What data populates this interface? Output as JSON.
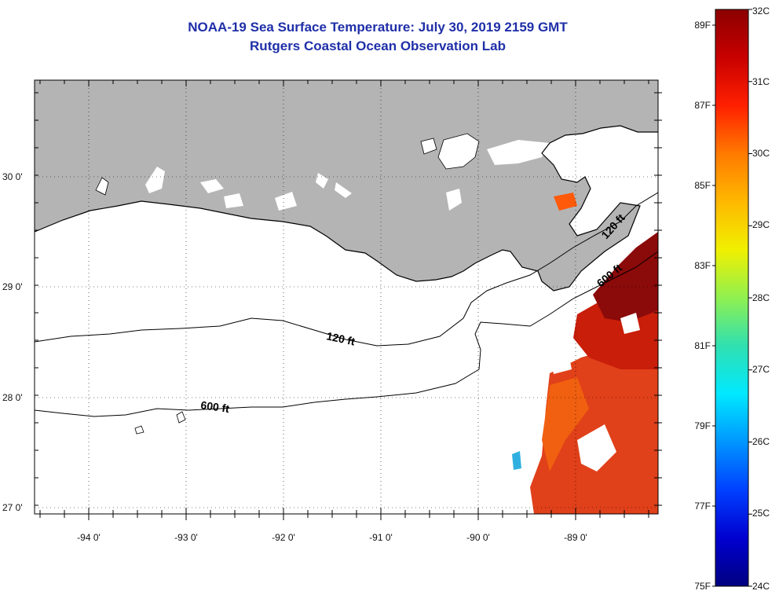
{
  "title": "NOAA-19 Sea Surface Temperature:  July 30, 2019 2159 GMT",
  "subtitle": "Rutgers Coastal Ocean Observation Lab",
  "map": {
    "lon_labels": [
      "-94 0'",
      "-93 0'",
      "-92 0'",
      "-91 0'",
      "-90 0'",
      "-89 0'"
    ],
    "lat_labels": [
      "30 0'",
      "29 0'",
      "28 0'",
      "27 0'"
    ],
    "isobath_labels": [
      "120 ft",
      "600 ft",
      "120 ft",
      "600 ft"
    ],
    "land_color": "#b4b4b4",
    "cloud_color": "#ffffff"
  },
  "colorbar": {
    "fahrenheit_labels": [
      "89F",
      "87F",
      "85F",
      "83F",
      "81F",
      "79F",
      "77F",
      "75F"
    ],
    "celsius_labels": [
      "32C",
      "31C",
      "30C",
      "29C",
      "28C",
      "27C",
      "26C",
      "25C",
      "24C"
    ],
    "gradient": [
      "#8b0000",
      "#c80000",
      "#ff2000",
      "#ff7a00",
      "#ffb800",
      "#f0f000",
      "#90f050",
      "#30e0b0",
      "#00e8ff",
      "#0096ff",
      "#0040ff",
      "#0000d0",
      "#000080"
    ]
  }
}
